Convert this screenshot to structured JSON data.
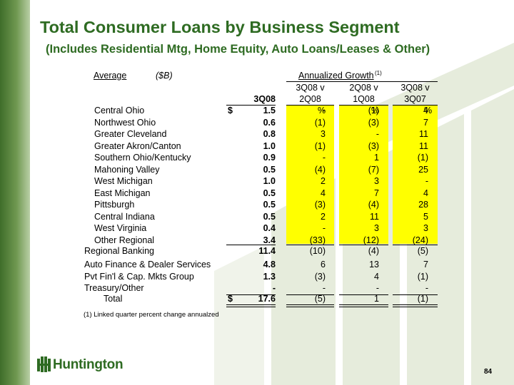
{
  "title": "Total Consumer Loans by Business Segment",
  "subtitle": "(Includes Residential Mtg, Home Equity, Auto Loans/Leases & Other)",
  "header": {
    "average": "Average",
    "unit": "($B)",
    "growth": "Annualized Growth",
    "growth_note": "(1)",
    "col1": "3Q08",
    "col2_a": "3Q08 v",
    "col2_b": "2Q08",
    "col3_a": "2Q08 v",
    "col3_b": "1Q08",
    "col4_a": "3Q08 v",
    "col4_b": "3Q07"
  },
  "dollar": "$",
  "pct": "%",
  "rows": [
    {
      "label": "Central Ohio",
      "v": "1.5",
      "g1": "-",
      "g2": "(1)",
      "g3": "4"
    },
    {
      "label": "Northwest Ohio",
      "v": "0.6",
      "g1": "(1)",
      "g2": "(3)",
      "g3": "7"
    },
    {
      "label": "Greater Cleveland",
      "v": "0.8",
      "g1": "3",
      "g2": "-",
      "g3": "11"
    },
    {
      "label": "Greater Akron/Canton",
      "v": "1.0",
      "g1": "(1)",
      "g2": "(3)",
      "g3": "11"
    },
    {
      "label": "Southern Ohio/Kentucky",
      "v": "0.9",
      "g1": "-",
      "g2": "1",
      "g3": "(1)"
    },
    {
      "label": "Mahoning Valley",
      "v": "0.5",
      "g1": "(4)",
      "g2": "(7)",
      "g3": "25"
    },
    {
      "label": "West Michigan",
      "v": "1.0",
      "g1": "2",
      "g2": "3",
      "g3": "-"
    },
    {
      "label": "East Michigan",
      "v": "0.5",
      "g1": "4",
      "g2": "7",
      "g3": "4"
    },
    {
      "label": "Pittsburgh",
      "v": "0.5",
      "g1": "(3)",
      "g2": "(4)",
      "g3": "28"
    },
    {
      "label": "Central Indiana",
      "v": "0.5",
      "g1": "2",
      "g2": "11",
      "g3": "5"
    },
    {
      "label": "West Virginia",
      "v": "0.4",
      "g1": "-",
      "g2": "3",
      "g3": "3"
    },
    {
      "label": "Other Regional",
      "v": "3.4",
      "g1": "(33)",
      "g2": "(12)",
      "g3": "(24)"
    }
  ],
  "regional": {
    "label": "Regional Banking",
    "v": "11.4",
    "g1": "(10)",
    "g2": "(4)",
    "g3": "(5)"
  },
  "other_rows": [
    {
      "label": "Auto Finance & Dealer Services",
      "v": "4.8",
      "g1": "6",
      "g2": "13",
      "g3": "7"
    },
    {
      "label": "Pvt Fin'l & Cap. Mkts Group",
      "v": "1.3",
      "g1": "(3)",
      "g2": "4",
      "g3": "(1)"
    },
    {
      "label": "Treasury/Other",
      "v": "-",
      "g1": "-",
      "g2": "-",
      "g3": "-"
    }
  ],
  "total": {
    "label": "Total",
    "v": "17.6",
    "g1": "(5)",
    "g2": "1",
    "g3": "(1)"
  },
  "footnote": "(1)  Linked quarter percent change annualzed",
  "logo_text": "Huntington",
  "page_number": "84",
  "colors": {
    "title": "#2e6b22",
    "highlight": "#ffff00",
    "sidebar": "#4d7c34",
    "shapes": "#e4ead9"
  }
}
